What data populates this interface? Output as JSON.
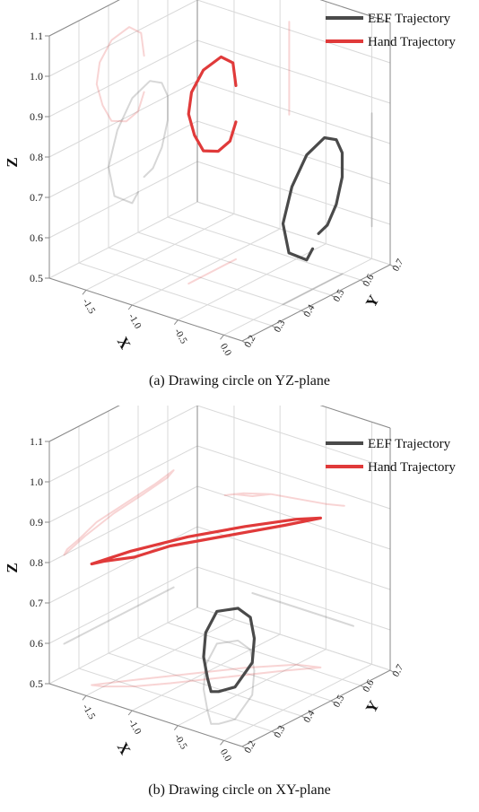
{
  "chart_data": [
    {
      "type": "line",
      "caption": "(a) Drawing circle on YZ-plane",
      "xlabel": "X",
      "ylabel": "Y",
      "zlabel": "Z",
      "x_ticks": [
        "-1.5",
        "-1.0",
        "-0.5",
        "0.0"
      ],
      "y_ticks": [
        "0.2",
        "0.3",
        "0.4",
        "0.5",
        "0.6",
        "0.7"
      ],
      "z_ticks": [
        "0.5",
        "0.6",
        "0.7",
        "0.8",
        "0.9",
        "1.0",
        "1.1"
      ],
      "xlim": [
        -1.9,
        0.2
      ],
      "ylim": [
        0.2,
        0.7
      ],
      "zlim": [
        0.5,
        1.1
      ],
      "grid": true,
      "legend_position": "top-right",
      "series": [
        {
          "name": "EEF Trajectory",
          "color": "#4a4a4a",
          "x": [
            0.0,
            0.0,
            0.0,
            0.0,
            0.0,
            0.0,
            0.0,
            0.0,
            0.0,
            0.0,
            0.0,
            0.0,
            0.0
          ],
          "y": [
            0.52,
            0.55,
            0.58,
            0.6,
            0.6,
            0.58,
            0.54,
            0.48,
            0.43,
            0.4,
            0.42,
            0.48,
            0.5
          ],
          "z": [
            0.63,
            0.64,
            0.68,
            0.74,
            0.8,
            0.84,
            0.86,
            0.84,
            0.78,
            0.7,
            0.62,
            0.58,
            0.6
          ]
        },
        {
          "name": "Hand Trajectory",
          "color": "#e03a3a",
          "x": [
            -0.9,
            -0.9,
            -0.9,
            -0.9,
            -0.9,
            -0.9,
            -0.9,
            -0.9,
            -0.9,
            -0.9,
            -0.9,
            -0.9
          ],
          "y": [
            0.52,
            0.51,
            0.5,
            0.46,
            0.41,
            0.38,
            0.36,
            0.37,
            0.41,
            0.47,
            0.51,
            0.52
          ],
          "z": [
            0.84,
            0.82,
            0.8,
            0.79,
            0.81,
            0.86,
            0.92,
            0.97,
            1.01,
            1.02,
            0.99,
            0.93
          ]
        }
      ]
    },
    {
      "type": "line",
      "caption": "(b) Drawing circle on XY-plane",
      "xlabel": "X",
      "ylabel": "Y",
      "zlabel": "Z",
      "x_ticks": [
        "-1.5",
        "-1.0",
        "-0.5",
        "0.0"
      ],
      "y_ticks": [
        "0.2",
        "0.3",
        "0.4",
        "0.5",
        "0.6",
        "0.7"
      ],
      "z_ticks": [
        "0.5",
        "0.6",
        "0.7",
        "0.8",
        "0.9",
        "1.0",
        "1.1"
      ],
      "xlim": [
        -1.9,
        0.2
      ],
      "ylim": [
        0.2,
        0.7
      ],
      "zlim": [
        0.5,
        1.1
      ],
      "grid": true,
      "legend_position": "top-right",
      "series": [
        {
          "name": "EEF Trajectory",
          "color": "#4a4a4a",
          "x": [
            -0.3,
            -0.5,
            -0.8,
            -1.1,
            -1.3,
            -1.2,
            -1.0,
            -0.7,
            -0.4,
            -0.2,
            -0.25,
            -0.3
          ],
          "y": [
            0.25,
            0.3,
            0.38,
            0.48,
            0.58,
            0.62,
            0.6,
            0.52,
            0.42,
            0.3,
            0.26,
            0.25
          ],
          "z": [
            0.58,
            0.58,
            0.58,
            0.58,
            0.58,
            0.58,
            0.58,
            0.58,
            0.58,
            0.58,
            0.58,
            0.58
          ]
        },
        {
          "name": "Hand Trajectory",
          "color": "#e03a3a",
          "x": [
            -1.6,
            -1.4,
            -1.1,
            -0.8,
            -0.5,
            -0.3,
            -0.5,
            -0.8,
            -1.1,
            -1.3,
            -1.5,
            -1.6
          ],
          "y": [
            0.25,
            0.32,
            0.42,
            0.52,
            0.6,
            0.62,
            0.56,
            0.46,
            0.36,
            0.3,
            0.26,
            0.25
          ],
          "z": [
            0.8,
            0.82,
            0.84,
            0.85,
            0.86,
            0.87,
            0.86,
            0.85,
            0.84,
            0.82,
            0.81,
            0.8
          ]
        }
      ]
    }
  ]
}
